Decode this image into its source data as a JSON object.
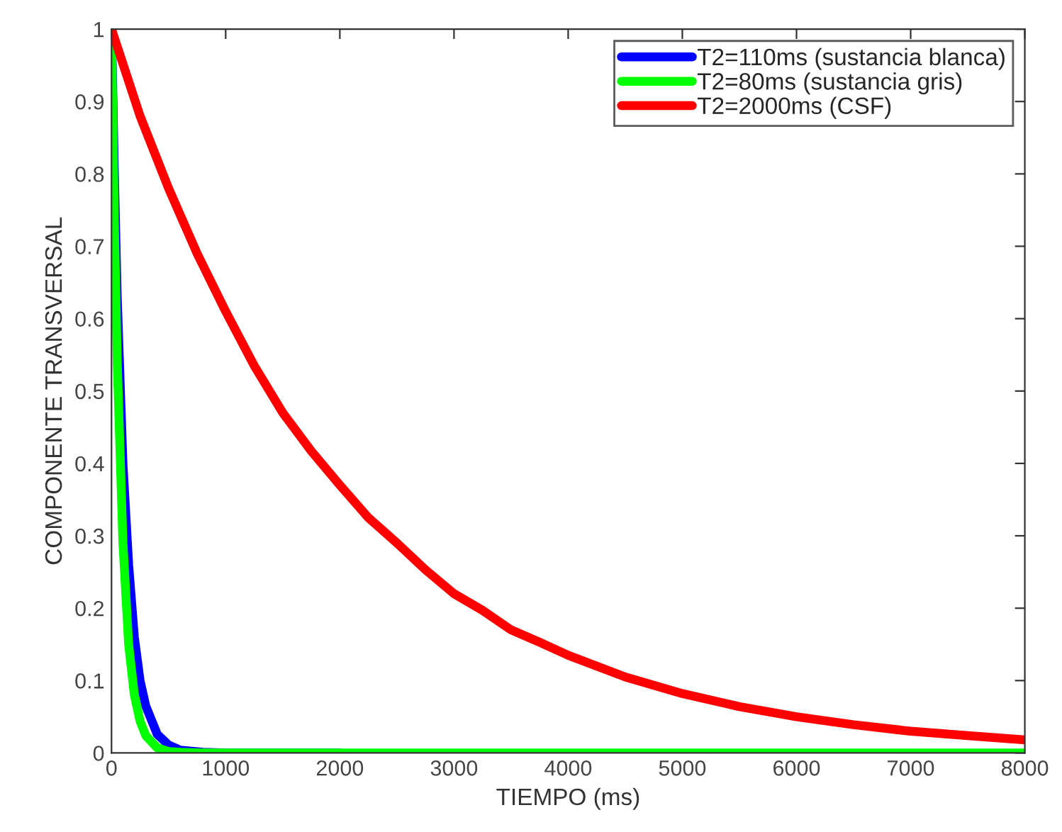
{
  "chart_data": {
    "type": "line",
    "xlabel": "TIEMPO (ms)",
    "ylabel": "COMPONENTE TRANSVERSAL",
    "xlim": [
      0,
      8000
    ],
    "ylim": [
      0,
      1
    ],
    "xticks": [
      0,
      1000,
      2000,
      3000,
      4000,
      5000,
      6000,
      7000,
      8000
    ],
    "yticks": [
      0,
      0.1,
      0.2,
      0.3,
      0.4,
      0.5,
      0.6,
      0.7,
      0.8,
      0.9,
      1
    ],
    "grid": false,
    "legend": "top right",
    "marker": "none",
    "line_style": "solid",
    "series": [
      {
        "name": "T2=110ms (sustancia blanca)",
        "color": "#0000ff",
        "x": [
          0,
          25,
          50,
          100,
          150,
          200,
          250,
          300,
          400,
          500,
          600,
          800,
          1000,
          2000
        ],
        "values": [
          1,
          0.8,
          0.63,
          0.4,
          0.26,
          0.16,
          0.1,
          0.065,
          0.026,
          0.011,
          0.004,
          0.001,
          0,
          0
        ]
      },
      {
        "name": "T2=80ms (sustancia gris)",
        "color": "#00ff00",
        "x": [
          0,
          25,
          50,
          100,
          150,
          200,
          250,
          300,
          400,
          500,
          600,
          800,
          1000,
          2000,
          4000,
          8000
        ],
        "values": [
          1,
          0.73,
          0.54,
          0.29,
          0.15,
          0.08,
          0.044,
          0.024,
          0.007,
          0.002,
          0.001,
          0,
          0,
          0,
          0,
          0
        ]
      },
      {
        "name": "T2=2000ms (CSF)",
        "color": "#ff0000",
        "x": [
          0,
          250,
          500,
          750,
          1000,
          1250,
          1500,
          1750,
          2000,
          2250,
          2500,
          2750,
          3000,
          3250,
          3500,
          3750,
          4000,
          4500,
          5000,
          5500,
          6000,
          6500,
          7000,
          7500,
          8000
        ],
        "values": [
          1,
          0.88,
          0.78,
          0.69,
          0.61,
          0.535,
          0.47,
          0.417,
          0.37,
          0.325,
          0.29,
          0.253,
          0.22,
          0.197,
          0.17,
          0.153,
          0.135,
          0.105,
          0.082,
          0.064,
          0.05,
          0.039,
          0.03,
          0.024,
          0.018
        ]
      }
    ]
  }
}
